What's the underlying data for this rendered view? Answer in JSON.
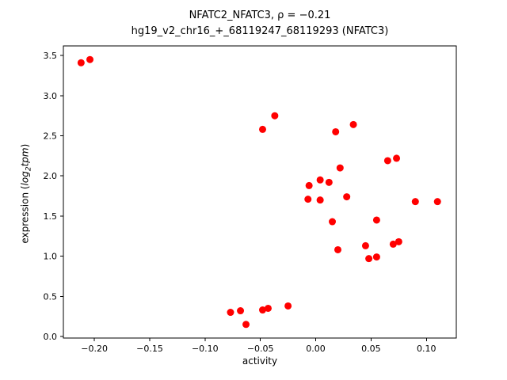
{
  "title": {
    "line1": "NFATC2_NFATC3, ρ = −0.21",
    "line2": "hg19_v2_chr16_+_68119247_68119293 (NFATC3)"
  },
  "axes": {
    "xlabel": "activity",
    "ylabel_prefix": "expression (",
    "ylabel_log": "log",
    "ylabel_sub": "2",
    "ylabel_tail": "tpm",
    "ylabel_close": ")"
  },
  "chart_data": {
    "type": "scatter",
    "marker_color": "#ff0000",
    "xlim": [
      -0.228,
      0.127
    ],
    "ylim": [
      -0.02,
      3.62
    ],
    "xticks": [
      -0.2,
      -0.15,
      -0.1,
      -0.05,
      0.0,
      0.05,
      0.1
    ],
    "xtick_labels": [
      "−0.20",
      "−0.15",
      "−0.10",
      "−0.05",
      "0.00",
      "0.05",
      "0.10"
    ],
    "yticks": [
      0.0,
      0.5,
      1.0,
      1.5,
      2.0,
      2.5,
      3.0,
      3.5
    ],
    "ytick_labels": [
      "0.0",
      "0.5",
      "1.0",
      "1.5",
      "2.0",
      "2.5",
      "3.0",
      "3.5"
    ],
    "points": [
      [
        -0.212,
        3.41
      ],
      [
        -0.204,
        3.45
      ],
      [
        -0.048,
        2.58
      ],
      [
        -0.037,
        2.75
      ],
      [
        0.018,
        2.55
      ],
      [
        0.034,
        2.64
      ],
      [
        0.022,
        2.1
      ],
      [
        0.065,
        2.19
      ],
      [
        0.073,
        2.22
      ],
      [
        -0.006,
        1.88
      ],
      [
        0.004,
        1.95
      ],
      [
        0.012,
        1.92
      ],
      [
        -0.007,
        1.71
      ],
      [
        0.004,
        1.7
      ],
      [
        0.028,
        1.74
      ],
      [
        0.015,
        1.43
      ],
      [
        0.055,
        1.45
      ],
      [
        0.09,
        1.68
      ],
      [
        0.11,
        1.68
      ],
      [
        0.02,
        1.08
      ],
      [
        0.045,
        1.13
      ],
      [
        0.048,
        0.97
      ],
      [
        0.055,
        0.99
      ],
      [
        0.07,
        1.15
      ],
      [
        0.075,
        1.18
      ],
      [
        -0.077,
        0.3
      ],
      [
        -0.068,
        0.32
      ],
      [
        -0.063,
        0.15
      ],
      [
        -0.048,
        0.33
      ],
      [
        -0.043,
        0.35
      ],
      [
        -0.025,
        0.38
      ]
    ]
  }
}
